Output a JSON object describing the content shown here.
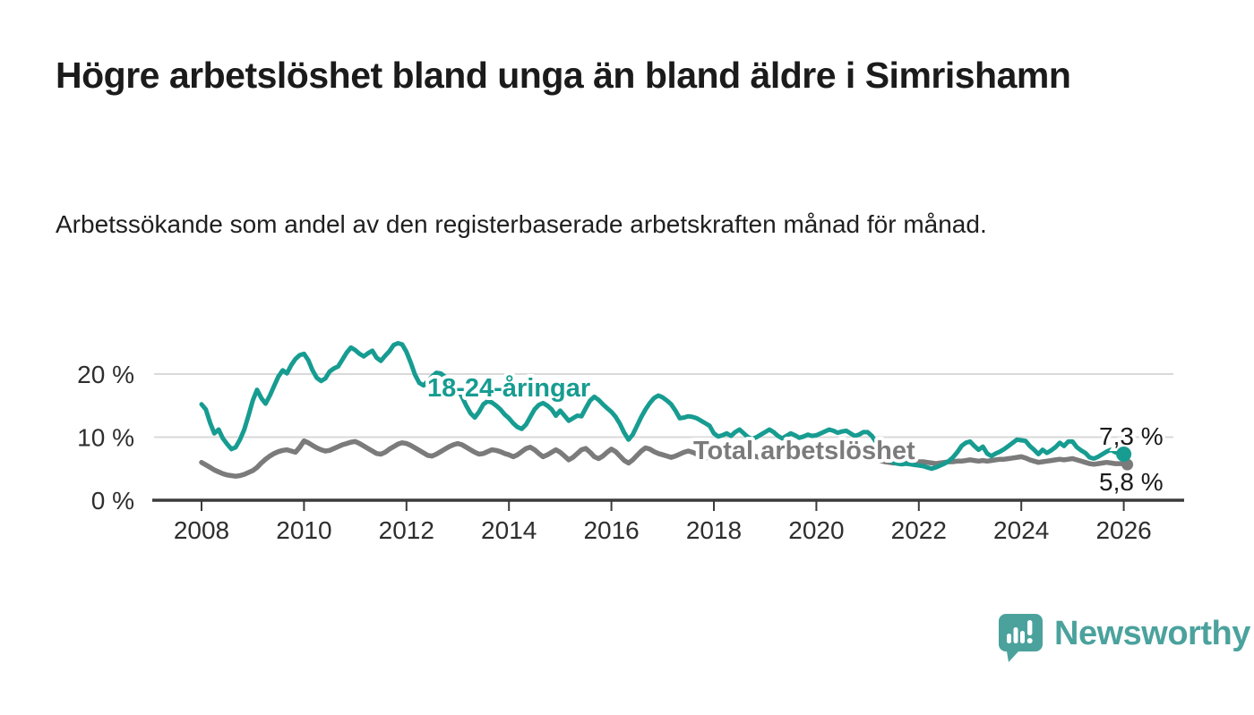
{
  "header": {
    "title": "Högre arbetslöshet bland unga än bland äldre i Simrishamn",
    "subtitle": "Arbetssökande som andel av den registerbaserade arbetskraften månad för månad."
  },
  "footer": {
    "brand": "Newsworthy",
    "logo_icon": "bar-chart-speech-bubble-icon",
    "brand_color": "#4BA29D"
  },
  "chart_data": {
    "type": "line",
    "title": "Högre arbetslöshet bland unga än bland äldre i Simrishamn",
    "xlabel": "",
    "ylabel": "",
    "frequency": "monthly",
    "x_start": "2008-01",
    "x_end": "2026-01",
    "grid": "horizontal",
    "ylim": [
      0,
      27.5
    ],
    "x_ticks": [
      "2008",
      "2010",
      "2012",
      "2014",
      "2016",
      "2018",
      "2020",
      "2022",
      "2024",
      "2026"
    ],
    "y_ticks": [
      {
        "value": 0,
        "label": "0 %"
      },
      {
        "value": 10,
        "label": "10 %"
      },
      {
        "value": 20,
        "label": "20 %"
      }
    ],
    "axis_color": "#3b3b3b",
    "grid_color": "#d9d9d9",
    "tick_label_color": "#2e2e2e",
    "end_label_color": "#1a1a1a",
    "series": [
      {
        "name": "Total arbetslöshet",
        "inline_label": "Total arbetslöshet",
        "end_label": "5,8 %",
        "end_value": 5.8,
        "color": "#7B7B7B",
        "values": [
          6.0,
          5.6,
          5.2,
          4.8,
          4.5,
          4.2,
          4.0,
          3.9,
          3.8,
          3.9,
          4.1,
          4.4,
          4.7,
          5.2,
          5.9,
          6.5,
          7.0,
          7.4,
          7.7,
          7.9,
          8.0,
          7.8,
          7.6,
          8.4,
          9.4,
          9.1,
          8.7,
          8.3,
          8.0,
          7.8,
          7.9,
          8.2,
          8.5,
          8.8,
          9.0,
          9.2,
          9.3,
          9.0,
          8.6,
          8.2,
          7.8,
          7.4,
          7.3,
          7.6,
          8.1,
          8.5,
          8.9,
          9.1,
          9.0,
          8.7,
          8.3,
          7.9,
          7.5,
          7.1,
          7.0,
          7.3,
          7.7,
          8.1,
          8.5,
          8.8,
          9.0,
          8.8,
          8.4,
          8.0,
          7.6,
          7.3,
          7.4,
          7.7,
          8.0,
          7.9,
          7.7,
          7.4,
          7.2,
          6.9,
          7.2,
          7.7,
          8.2,
          8.4,
          8.0,
          7.4,
          6.9,
          7.2,
          7.6,
          8.0,
          7.6,
          7.0,
          6.4,
          6.8,
          7.4,
          8.0,
          8.2,
          7.6,
          6.9,
          6.6,
          7.0,
          7.6,
          8.1,
          7.7,
          7.0,
          6.3,
          5.9,
          6.4,
          7.1,
          7.8,
          8.3,
          8.1,
          7.7,
          7.4,
          7.2,
          7.0,
          6.8,
          7.0,
          7.3,
          7.6,
          7.8,
          7.6,
          7.3,
          7.0,
          6.8,
          6.7,
          6.9,
          7.1,
          7.2,
          7.0,
          6.8,
          6.6,
          6.8,
          7.0,
          7.2,
          7.1,
          6.9,
          6.8,
          7.0,
          7.2,
          7.1,
          6.9,
          6.7,
          6.8,
          7.0,
          7.1,
          7.0,
          6.9,
          6.8,
          6.9,
          7.0,
          7.1,
          7.3,
          7.6,
          7.7,
          7.8,
          7.7,
          7.6,
          7.4,
          7.2,
          7.1,
          7.0,
          7.0,
          6.8,
          6.5,
          6.3,
          6.1,
          6.0,
          5.9,
          5.9,
          5.8,
          5.9,
          6.0,
          6.1,
          6.1,
          6.1,
          6.0,
          5.9,
          5.8,
          5.9,
          6.0,
          6.1,
          6.1,
          6.2,
          6.2,
          6.3,
          6.4,
          6.3,
          6.2,
          6.3,
          6.2,
          6.3,
          6.4,
          6.5,
          6.5,
          6.6,
          6.7,
          6.8,
          6.9,
          6.7,
          6.4,
          6.2,
          6.0,
          6.1,
          6.2,
          6.3,
          6.4,
          6.5,
          6.4,
          6.5,
          6.6,
          6.4,
          6.2,
          6.0,
          5.8,
          5.7,
          5.8,
          5.9,
          6.0,
          5.9,
          5.8,
          5.8,
          5.8
        ]
      },
      {
        "name": "18-24-åringar",
        "inline_label": "18-24-åringar",
        "end_label": "7,3 %",
        "end_value": 7.3,
        "color": "#179C91",
        "values": [
          15.2,
          14.4,
          12.3,
          10.6,
          11.2,
          9.8,
          8.9,
          8.1,
          8.4,
          9.6,
          11.2,
          13.4,
          15.8,
          17.5,
          16.2,
          15.3,
          16.6,
          18.1,
          19.6,
          20.6,
          20.1,
          21.4,
          22.4,
          23.0,
          23.2,
          22.2,
          20.6,
          19.4,
          18.9,
          19.3,
          20.4,
          20.9,
          21.2,
          22.3,
          23.4,
          24.2,
          23.8,
          23.2,
          22.8,
          23.3,
          23.7,
          22.6,
          22.1,
          22.9,
          23.6,
          24.6,
          24.9,
          24.7,
          23.5,
          21.8,
          19.9,
          18.6,
          18.2,
          18.9,
          19.6,
          20.2,
          20.1,
          19.6,
          19.0,
          18.4,
          17.6,
          16.4,
          15.0,
          13.8,
          13.1,
          14.0,
          15.2,
          15.7,
          15.5,
          15.0,
          14.4,
          13.6,
          13.0,
          12.2,
          11.6,
          11.3,
          12.0,
          13.2,
          14.4,
          15.1,
          15.4,
          15.0,
          14.4,
          13.4,
          14.2,
          13.4,
          12.6,
          13.0,
          13.4,
          13.3,
          14.6,
          15.8,
          16.4,
          15.9,
          15.2,
          14.6,
          14.0,
          13.2,
          12.1,
          10.7,
          9.6,
          10.4,
          11.8,
          13.2,
          14.4,
          15.4,
          16.2,
          16.6,
          16.3,
          15.8,
          15.2,
          14.2,
          13.0,
          13.1,
          13.3,
          13.2,
          13.0,
          12.6,
          12.2,
          11.8,
          10.6,
          10.1,
          10.3,
          10.6,
          10.2,
          10.8,
          11.2,
          10.6,
          10.0,
          9.7,
          10.0,
          10.4,
          10.8,
          11.2,
          10.8,
          10.2,
          9.8,
          10.2,
          10.6,
          10.3,
          9.9,
          10.1,
          10.4,
          10.2,
          10.3,
          10.6,
          10.9,
          11.2,
          11.0,
          10.7,
          10.9,
          11.0,
          10.6,
          10.2,
          10.4,
          10.8,
          10.8,
          10.2,
          9.2,
          8.2,
          7.2,
          6.4,
          6.0,
          5.8,
          5.7,
          5.8,
          5.7,
          5.6,
          5.5,
          5.4,
          5.2,
          5.0,
          5.2,
          5.5,
          5.8,
          6.2,
          6.8,
          7.6,
          8.6,
          9.1,
          9.3,
          8.6,
          8.0,
          8.5,
          7.4,
          7.0,
          7.4,
          7.7,
          8.1,
          8.6,
          9.1,
          9.6,
          9.5,
          9.4,
          8.6,
          8.0,
          7.3,
          8.0,
          7.5,
          7.9,
          8.4,
          9.1,
          8.6,
          9.3,
          9.3,
          8.4,
          7.9,
          7.5,
          6.8,
          6.6,
          6.9,
          7.3,
          7.7,
          8.0,
          7.6,
          7.4,
          7.3
        ]
      }
    ]
  }
}
